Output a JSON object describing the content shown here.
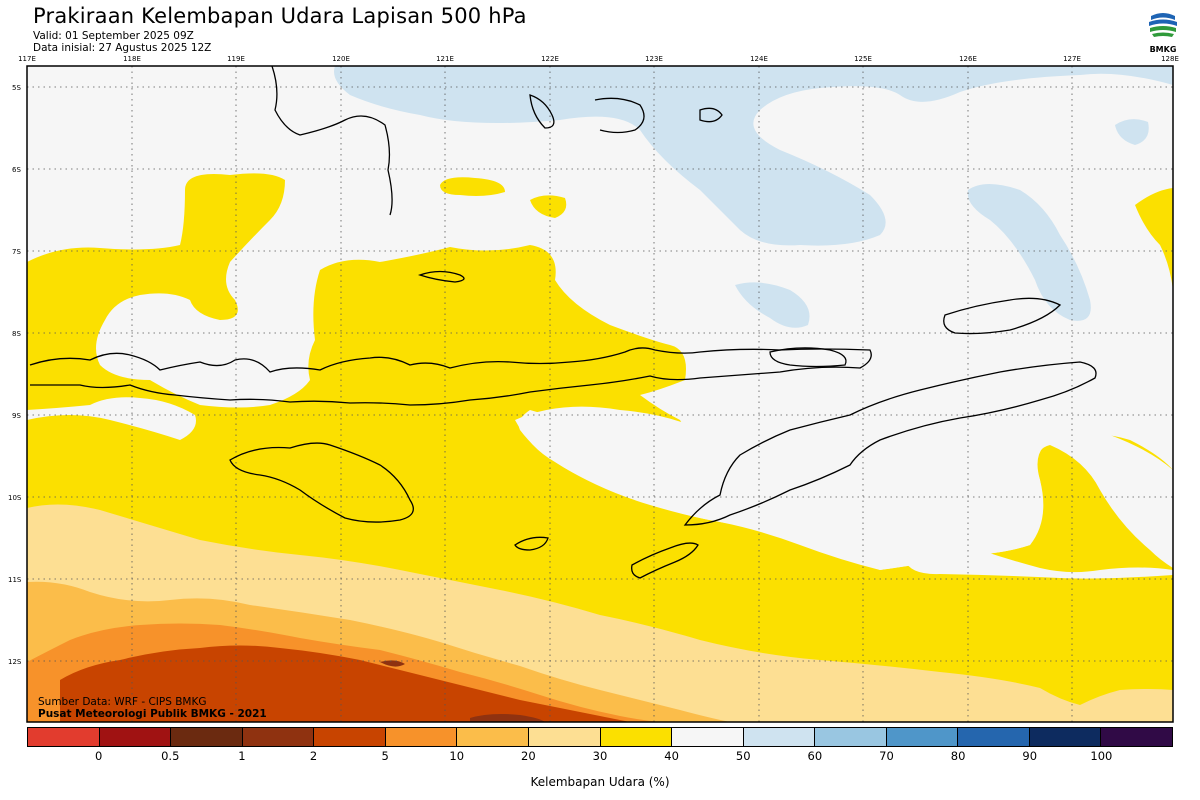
{
  "header": {
    "title": "Prakiraan Kelembapan Udara Lapisan 500 hPa",
    "valid": "Valid: 01 September 2025 09Z",
    "init": "Data inisial: 27 Agustus 2025 12Z"
  },
  "logo": {
    "text": "BMKG",
    "icon": "bmkg-logo"
  },
  "map": {
    "lon_labels": [
      "117E",
      "118E",
      "119E",
      "120E",
      "121E",
      "122E",
      "123E",
      "124E",
      "125E",
      "126E",
      "127E",
      "128E"
    ],
    "lat_labels": [
      "5S",
      "6S",
      "7S",
      "8S",
      "9S",
      "10S",
      "11S",
      "12S"
    ],
    "extent": {
      "lon": [
        117,
        128
      ],
      "lat": [
        -12.8,
        -4.8
      ]
    }
  },
  "credits": {
    "line1": "Sumber Data: WRF - CIPS BMKG",
    "line2": "Pusat Meteorologi Publik BMKG - 2021"
  },
  "colorbar": {
    "title": "Kelembapan Udara (%)",
    "ticks": [
      "0",
      "0.5",
      "1",
      "2",
      "5",
      "10",
      "20",
      "30",
      "40",
      "50",
      "60",
      "70",
      "80",
      "90",
      "100"
    ],
    "colors": [
      "#e23c2e",
      "#a01212",
      "#6b2a10",
      "#8f3210",
      "#c84400",
      "#f7922a",
      "#fbbd4a",
      "#fddf93",
      "#fbe000",
      "#f6f6f6",
      "#cfe3f0",
      "#99c6e1",
      "#4f96c9",
      "#2566ae",
      "#0d2b5f",
      "#300a46"
    ]
  },
  "legend_colors": {
    "dry_orange": "#c84400",
    "orange": "#f7922a",
    "light_orange": "#fbbd4a",
    "beige": "#fddf93",
    "yellow": "#fbe000",
    "white": "#f6f6f6",
    "light_blue": "#cfe3f0"
  }
}
